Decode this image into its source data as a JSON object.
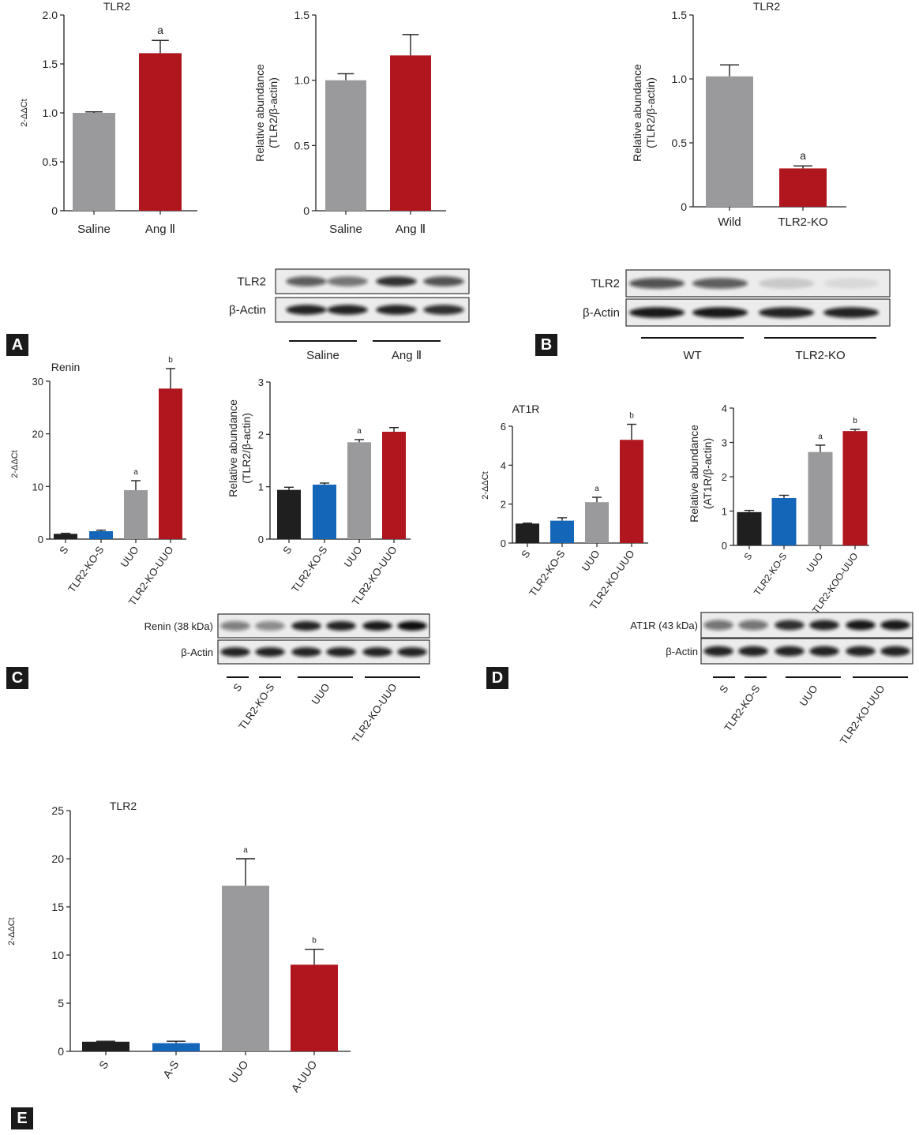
{
  "panels": [
    "A",
    "B",
    "C",
    "D",
    "E"
  ],
  "colors": {
    "gray": "#9a9a9c",
    "red": "#b0161e",
    "black": "#1f1f1f",
    "blue": "#1467b8"
  },
  "chart_data": [
    {
      "id": "A-mrna",
      "type": "bar",
      "title": "TLR2",
      "ylabel": "2-ΔΔCt",
      "ylim": [
        0,
        2.0
      ],
      "yticks": [
        "0",
        "0.5",
        "1.0",
        "1.5",
        "2.0"
      ],
      "categories": [
        "Saline",
        "Ang Ⅱ"
      ],
      "values": [
        1.0,
        1.61
      ],
      "errors": [
        0.01,
        0.13
      ],
      "colors": [
        "gray",
        "red"
      ],
      "annotations": [
        "",
        "a"
      ]
    },
    {
      "id": "A-protein",
      "type": "bar",
      "title": "",
      "ylabel": "Relative abundance (TLR2/β-actin)",
      "ylim": [
        0,
        1.5
      ],
      "yticks": [
        "0",
        "0.5",
        "1.0",
        "1.5"
      ],
      "categories": [
        "Saline",
        "Ang Ⅱ"
      ],
      "values": [
        1.0,
        1.19
      ],
      "errors": [
        0.05,
        0.16
      ],
      "colors": [
        "gray",
        "red"
      ],
      "annotations": [
        "",
        ""
      ]
    },
    {
      "id": "B-protein",
      "type": "bar",
      "title": "TLR2",
      "ylabel": "Relative abundance (TLR2/β-actin)",
      "ylim": [
        0,
        1.5
      ],
      "yticks": [
        "0",
        "0.5",
        "1.0",
        "1.5"
      ],
      "categories": [
        "Wild",
        "TLR2-KO"
      ],
      "values": [
        1.02,
        0.3
      ],
      "errors": [
        0.09,
        0.02
      ],
      "colors": [
        "gray",
        "red"
      ],
      "annotations": [
        "",
        "a"
      ]
    },
    {
      "id": "C-mrna",
      "type": "bar",
      "title": "Renin",
      "ylabel": "2-ΔΔCt",
      "ylim": [
        0,
        30
      ],
      "yticks": [
        "0",
        "10",
        "20",
        "30"
      ],
      "categories": [
        "S",
        "TLR2-KO-S",
        "UUO",
        "TLR2-KO-UUO"
      ],
      "values": [
        1.0,
        1.5,
        9.3,
        28.6
      ],
      "errors": [
        0.1,
        0.2,
        1.8,
        3.8
      ],
      "colors": [
        "black",
        "blue",
        "gray",
        "red"
      ],
      "annotations": [
        "",
        "",
        "a",
        "b"
      ]
    },
    {
      "id": "C-protein",
      "type": "bar",
      "title": "",
      "ylabel": "Relative abundance (TLR2/β-actin)",
      "ylim": [
        0,
        3
      ],
      "yticks": [
        "0",
        "1",
        "2",
        "3"
      ],
      "categories": [
        "S",
        "TLR2-KO-S",
        "UUO",
        "TLR2-KO-UUO"
      ],
      "values": [
        0.94,
        1.04,
        1.85,
        2.05
      ],
      "errors": [
        0.05,
        0.03,
        0.05,
        0.08
      ],
      "colors": [
        "black",
        "blue",
        "gray",
        "red"
      ],
      "annotations": [
        "",
        "",
        "a",
        ""
      ]
    },
    {
      "id": "D-mrna",
      "type": "bar",
      "title": "AT1R",
      "ylabel": "2-ΔΔCt",
      "ylim": [
        0,
        6
      ],
      "yticks": [
        "0",
        "2",
        "4",
        "6"
      ],
      "categories": [
        "S",
        "TLR2-KO-S",
        "UUO",
        "TLR2-KO-UUO"
      ],
      "values": [
        1.0,
        1.15,
        2.1,
        5.3
      ],
      "errors": [
        0.02,
        0.15,
        0.25,
        0.8
      ],
      "colors": [
        "black",
        "blue",
        "gray",
        "red"
      ],
      "annotations": [
        "",
        "",
        "a",
        "b"
      ]
    },
    {
      "id": "D-protein",
      "type": "bar",
      "title": "",
      "ylabel": "Relative abundance (AT1R/β-actin)",
      "ylim": [
        0,
        4
      ],
      "yticks": [
        "0",
        "1",
        "2",
        "3",
        "4"
      ],
      "categories": [
        "S",
        "TLR2-KO-S",
        "UUO",
        "TLR2-KOO-UUO"
      ],
      "values": [
        0.97,
        1.38,
        2.72,
        3.33
      ],
      "errors": [
        0.05,
        0.08,
        0.2,
        0.05
      ],
      "colors": [
        "black",
        "blue",
        "gray",
        "red"
      ],
      "annotations": [
        "",
        "",
        "a",
        "b"
      ]
    },
    {
      "id": "E-mrna",
      "type": "bar",
      "title": "TLR2",
      "ylabel": "2-ΔΔCt",
      "ylim": [
        0,
        25
      ],
      "yticks": [
        "0",
        "5",
        "10",
        "15",
        "20",
        "25"
      ],
      "categories": [
        "S",
        "A-S",
        "UUO",
        "A-UUO"
      ],
      "values": [
        1.0,
        0.85,
        17.2,
        9.0
      ],
      "errors": [
        0.05,
        0.2,
        2.8,
        1.6
      ],
      "colors": [
        "black",
        "blue",
        "gray",
        "red"
      ],
      "annotations": [
        "",
        "",
        "a",
        "b"
      ]
    }
  ],
  "blots": [
    {
      "id": "A-blot",
      "rows": [
        "TLR2",
        "β-Actin"
      ],
      "groups": [
        "Saline",
        "Ang Ⅱ"
      ]
    },
    {
      "id": "B-blot",
      "rows": [
        "TLR2",
        "β-Actin"
      ],
      "groups": [
        "WT",
        "TLR2-KO"
      ]
    },
    {
      "id": "C-blot",
      "rows": [
        "Renin (38 kDa)",
        "β-Actin"
      ],
      "groups": [
        "S",
        "TLR2-KO-S",
        "UUO",
        "TLR2-KO-UUO"
      ]
    },
    {
      "id": "D-blot",
      "rows": [
        "AT1R (43 kDa)",
        "β-Actin"
      ],
      "groups": [
        "S",
        "TLR2-KO-S",
        "UUO",
        "TLR2-KO-UUO"
      ]
    }
  ]
}
